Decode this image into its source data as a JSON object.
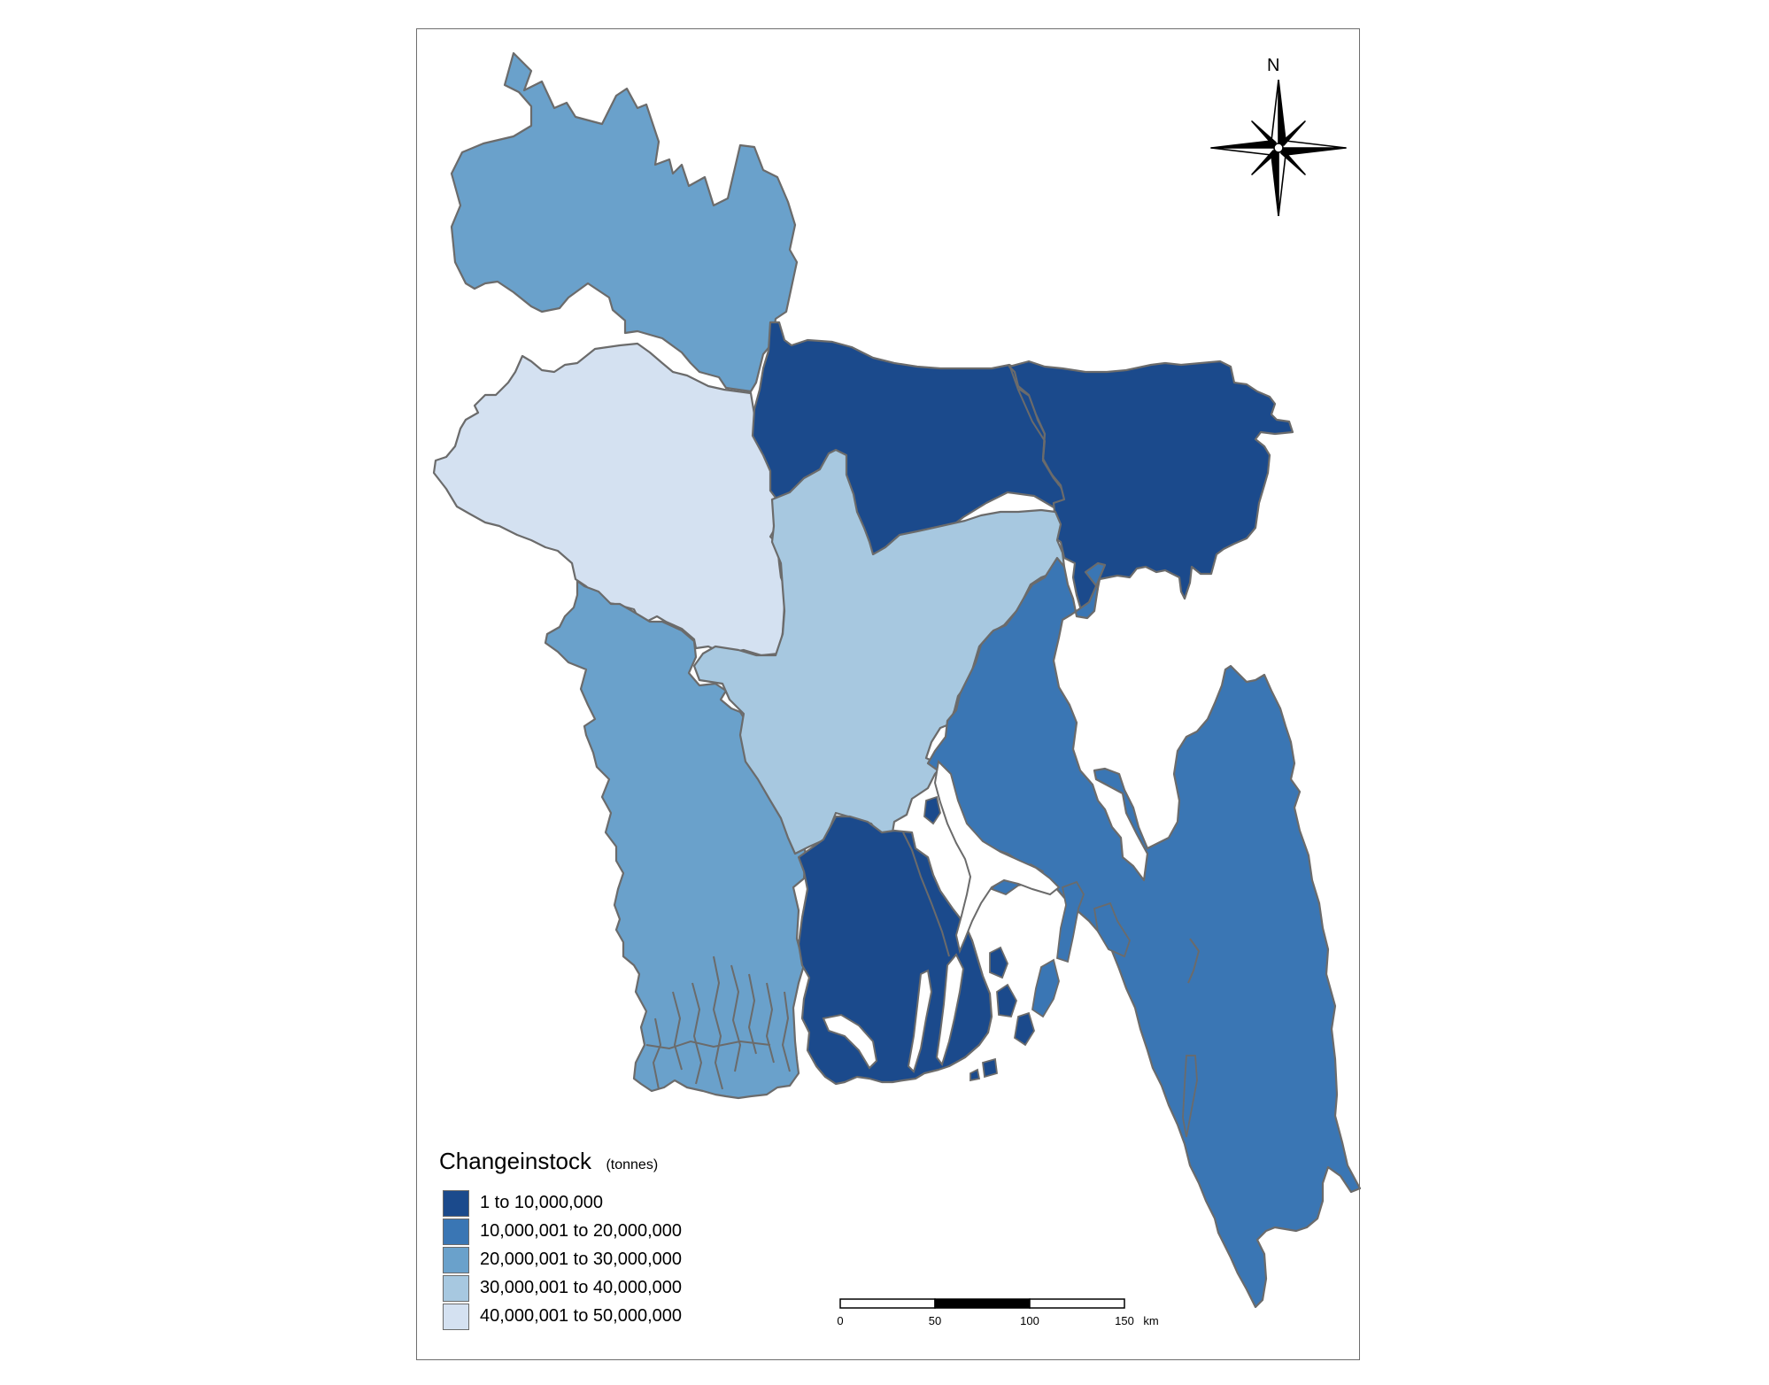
{
  "legend": {
    "title": "Changeinstock",
    "unit": "(tonnes)",
    "classes": [
      {
        "label": "1 to 10,000,000",
        "color": "#1b4a8c"
      },
      {
        "label": "10,000,001 to 20,000,000",
        "color": "#3a76b4"
      },
      {
        "label": "20,000,001 to 30,000,000",
        "color": "#6aa1cb"
      },
      {
        "label": "30,000,001 to 40,000,000",
        "color": "#a7c8e0"
      },
      {
        "label": "40,000,001 to 50,000,000",
        "color": "#d4e1f1"
      }
    ]
  },
  "scale_bar": {
    "ticks": [
      "0",
      "50",
      "100",
      "150"
    ],
    "unit": "km"
  },
  "north_arrow": {
    "label": "N",
    "icon": "compass-rose-icon"
  },
  "colors": {
    "border": "#6b6b6b",
    "water": "#ffffff"
  }
}
